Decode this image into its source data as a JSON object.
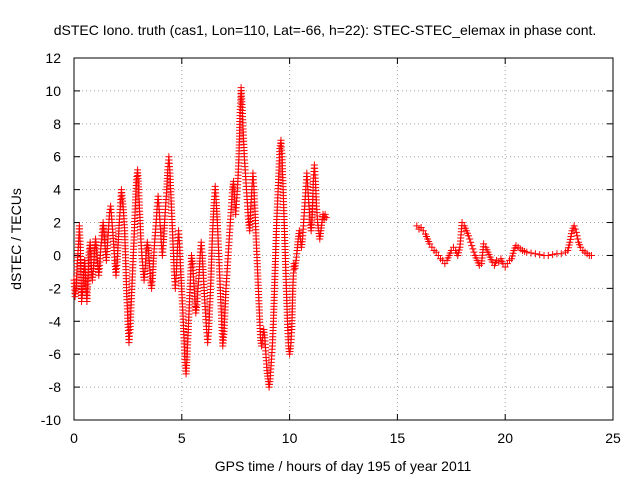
{
  "chart_data": {
    "type": "scatter",
    "title": "dSTEC Iono. truth (cas1, Lon=110, Lat=-66, h=22): STEC-STEC_elemax in phase cont.",
    "xlabel": "GPS time / hours of day 195 of year 2011",
    "ylabel": "dSTEC  / TECUs",
    "xlim": [
      0,
      25
    ],
    "ylim": [
      -10,
      12
    ],
    "xticks": [
      0,
      5,
      10,
      15,
      20,
      25
    ],
    "yticks": [
      -10,
      -8,
      -6,
      -4,
      -2,
      0,
      2,
      4,
      6,
      8,
      10,
      12
    ],
    "grid": true,
    "marker": "+",
    "color": "#ff0000",
    "series": [
      {
        "points": [
          [
            0.0,
            -1.5
          ],
          [
            0.05,
            -2.5
          ],
          [
            0.1,
            -2.0
          ],
          [
            0.15,
            -0.5
          ],
          [
            0.2,
            0.5
          ],
          [
            0.25,
            1.8
          ],
          [
            0.3,
            0.3
          ],
          [
            0.35,
            -2.8
          ],
          [
            0.4,
            -2.2
          ],
          [
            0.45,
            -1.0
          ],
          [
            0.5,
            -0.3
          ],
          [
            0.55,
            -1.8
          ],
          [
            0.6,
            -2.8
          ],
          [
            0.65,
            -1.2
          ],
          [
            0.7,
            0.2
          ],
          [
            0.75,
            0.8
          ],
          [
            0.8,
            -0.6
          ],
          [
            0.85,
            -1.5
          ],
          [
            0.9,
            -0.8
          ],
          [
            0.95,
            0.3
          ],
          [
            1.0,
            1.0
          ],
          [
            1.05,
            0.2
          ],
          [
            1.1,
            -0.5
          ],
          [
            1.15,
            -1.2
          ],
          [
            1.2,
            -0.4
          ],
          [
            1.25,
            0.6
          ],
          [
            1.3,
            1.2
          ],
          [
            1.35,
            2.0
          ],
          [
            1.4,
            1.3
          ],
          [
            1.45,
            0.4
          ],
          [
            1.5,
            -0.3
          ],
          [
            1.55,
            0.6
          ],
          [
            1.6,
            1.6
          ],
          [
            1.65,
            2.6
          ],
          [
            1.7,
            3.0
          ],
          [
            1.75,
            2.2
          ],
          [
            1.8,
            1.4
          ],
          [
            1.85,
            0.5
          ],
          [
            1.9,
            -0.5
          ],
          [
            1.95,
            -1.2
          ],
          [
            2.0,
            -0.4
          ],
          [
            2.05,
            0.8
          ],
          [
            2.1,
            2.0
          ],
          [
            2.15,
            3.0
          ],
          [
            2.2,
            4.0
          ],
          [
            2.25,
            3.3
          ],
          [
            2.3,
            2.6
          ],
          [
            2.35,
            1.5
          ],
          [
            2.4,
            -0.5
          ],
          [
            2.45,
            -2.5
          ],
          [
            2.5,
            -4.0
          ],
          [
            2.55,
            -5.3
          ],
          [
            2.6,
            -4.5
          ],
          [
            2.65,
            -3.0
          ],
          [
            2.7,
            -1.5
          ],
          [
            2.75,
            0.0
          ],
          [
            2.8,
            1.5
          ],
          [
            2.85,
            3.2
          ],
          [
            2.9,
            4.6
          ],
          [
            2.95,
            5.2
          ],
          [
            3.0,
            4.0
          ],
          [
            3.05,
            2.5
          ],
          [
            3.1,
            1.0
          ],
          [
            3.15,
            0.0
          ],
          [
            3.2,
            -0.8
          ],
          [
            3.25,
            -1.5
          ],
          [
            3.3,
            -0.8
          ],
          [
            3.35,
            0.2
          ],
          [
            3.4,
            0.8
          ],
          [
            3.45,
            0.3
          ],
          [
            3.5,
            -0.5
          ],
          [
            3.55,
            -1.5
          ],
          [
            3.6,
            -2.0
          ],
          [
            3.65,
            -1.2
          ],
          [
            3.7,
            0.0
          ],
          [
            3.75,
            1.0
          ],
          [
            3.8,
            1.8
          ],
          [
            3.85,
            2.8
          ],
          [
            3.9,
            3.6
          ],
          [
            3.95,
            2.8
          ],
          [
            4.0,
            1.8
          ],
          [
            4.05,
            0.8
          ],
          [
            4.1,
            0.0
          ],
          [
            4.15,
            0.8
          ],
          [
            4.2,
            2.0
          ],
          [
            4.25,
            3.0
          ],
          [
            4.3,
            4.0
          ],
          [
            4.35,
            5.2
          ],
          [
            4.4,
            6.0
          ],
          [
            4.45,
            5.0
          ],
          [
            4.5,
            3.5
          ],
          [
            4.55,
            2.0
          ],
          [
            4.6,
            0.5
          ],
          [
            4.65,
            -1.0
          ],
          [
            4.7,
            -2.0
          ],
          [
            4.75,
            -1.0
          ],
          [
            4.8,
            0.5
          ],
          [
            4.85,
            1.5
          ],
          [
            4.9,
            0.5
          ],
          [
            4.95,
            -1.0
          ],
          [
            5.0,
            -2.2
          ],
          [
            5.05,
            -3.5
          ],
          [
            5.1,
            -5.0
          ],
          [
            5.15,
            -6.5
          ],
          [
            5.2,
            -7.2
          ],
          [
            5.25,
            -6.0
          ],
          [
            5.3,
            -4.5
          ],
          [
            5.35,
            -3.0
          ],
          [
            5.4,
            -1.5
          ],
          [
            5.45,
            0.0
          ],
          [
            5.5,
            -0.5
          ],
          [
            5.55,
            -1.5
          ],
          [
            5.6,
            -2.5
          ],
          [
            5.65,
            -3.5
          ],
          [
            5.7,
            -3.0
          ],
          [
            5.75,
            -2.0
          ],
          [
            5.8,
            -1.2
          ],
          [
            5.85,
            0.0
          ],
          [
            5.9,
            0.8
          ],
          [
            5.95,
            0.0
          ],
          [
            6.0,
            -1.2
          ],
          [
            6.05,
            -2.5
          ],
          [
            6.1,
            -3.5
          ],
          [
            6.15,
            -4.5
          ],
          [
            6.2,
            -5.3
          ],
          [
            6.25,
            -4.5
          ],
          [
            6.3,
            -3.0
          ],
          [
            6.35,
            -1.5
          ],
          [
            6.4,
            0.5
          ],
          [
            6.45,
            2.0
          ],
          [
            6.5,
            3.2
          ],
          [
            6.55,
            4.2
          ],
          [
            6.6,
            3.2
          ],
          [
            6.65,
            2.0
          ],
          [
            6.7,
            0.5
          ],
          [
            6.75,
            -1.0
          ],
          [
            6.8,
            -2.5
          ],
          [
            6.85,
            -4.0
          ],
          [
            6.9,
            -5.5
          ],
          [
            6.95,
            -4.8
          ],
          [
            7.0,
            -3.5
          ],
          [
            7.05,
            -2.0
          ],
          [
            7.1,
            -1.0
          ],
          [
            7.15,
            0.0
          ],
          [
            7.2,
            1.0
          ],
          [
            7.25,
            2.0
          ],
          [
            7.3,
            3.0
          ],
          [
            7.35,
            4.0
          ],
          [
            7.4,
            4.5
          ],
          [
            7.45,
            3.5
          ],
          [
            7.5,
            2.5
          ],
          [
            7.55,
            3.5
          ],
          [
            7.6,
            4.5
          ],
          [
            7.65,
            6.0
          ],
          [
            7.7,
            8.5
          ],
          [
            7.75,
            10.2
          ],
          [
            7.8,
            9.0
          ],
          [
            7.85,
            7.5
          ],
          [
            7.9,
            6.0
          ],
          [
            7.95,
            5.0
          ],
          [
            8.0,
            4.0
          ],
          [
            8.05,
            3.0
          ],
          [
            8.1,
            2.0
          ],
          [
            8.15,
            1.5
          ],
          [
            8.2,
            3.0
          ],
          [
            8.25,
            4.0
          ],
          [
            8.3,
            5.0
          ],
          [
            8.35,
            4.0
          ],
          [
            8.4,
            2.5
          ],
          [
            8.45,
            1.0
          ],
          [
            8.5,
            -0.5
          ],
          [
            8.55,
            -2.0
          ],
          [
            8.6,
            -3.5
          ],
          [
            8.65,
            -5.0
          ],
          [
            8.7,
            -5.5
          ],
          [
            8.75,
            -5.0
          ],
          [
            8.8,
            -4.5
          ],
          [
            8.85,
            -5.0
          ],
          [
            8.9,
            -6.0
          ],
          [
            8.95,
            -7.0
          ],
          [
            9.0,
            -7.5
          ],
          [
            9.05,
            -8.0
          ],
          [
            9.1,
            -7.5
          ],
          [
            9.15,
            -6.5
          ],
          [
            9.2,
            -5.5
          ],
          [
            9.25,
            -4.0
          ],
          [
            9.3,
            -2.0
          ],
          [
            9.35,
            0.0
          ],
          [
            9.4,
            2.0
          ],
          [
            9.45,
            3.5
          ],
          [
            9.5,
            5.0
          ],
          [
            9.55,
            6.5
          ],
          [
            9.6,
            7.0
          ],
          [
            9.65,
            6.0
          ],
          [
            9.7,
            4.0
          ],
          [
            9.75,
            2.0
          ],
          [
            9.8,
            0.0
          ],
          [
            9.85,
            -2.0
          ],
          [
            9.9,
            -4.0
          ],
          [
            9.95,
            -5.5
          ],
          [
            10.0,
            -6.0
          ],
          [
            10.05,
            -5.5
          ],
          [
            10.1,
            -4.5
          ],
          [
            10.15,
            -2.0
          ],
          [
            10.2,
            -0.5
          ],
          [
            10.25,
            -0.8
          ],
          [
            10.3,
            -0.3
          ],
          [
            10.35,
            0.3
          ],
          [
            10.4,
            1.0
          ],
          [
            10.45,
            1.5
          ],
          [
            10.5,
            1.0
          ],
          [
            10.55,
            0.5
          ],
          [
            10.6,
            1.0
          ],
          [
            10.65,
            2.0
          ],
          [
            10.7,
            3.0
          ],
          [
            10.75,
            4.0
          ],
          [
            10.8,
            5.0
          ],
          [
            10.85,
            4.0
          ],
          [
            10.9,
            3.0
          ],
          [
            10.95,
            2.0
          ],
          [
            11.0,
            1.5
          ],
          [
            11.05,
            2.5
          ],
          [
            11.1,
            4.5
          ],
          [
            11.15,
            5.5
          ],
          [
            11.2,
            4.5
          ],
          [
            11.25,
            3.0
          ],
          [
            11.3,
            2.0
          ],
          [
            11.35,
            1.5
          ],
          [
            11.4,
            1.0
          ],
          [
            11.45,
            1.5
          ],
          [
            11.5,
            2.0
          ],
          [
            11.55,
            2.5
          ],
          [
            11.6,
            2.2
          ],
          [
            11.65,
            2.5
          ],
          [
            11.7,
            2.3
          ],
          [
            15.9,
            1.8
          ],
          [
            16.0,
            1.6
          ],
          [
            16.1,
            1.7
          ],
          [
            16.2,
            1.5
          ],
          [
            16.3,
            1.3
          ],
          [
            16.4,
            1.0
          ],
          [
            16.5,
            0.7
          ],
          [
            16.6,
            0.5
          ],
          [
            16.7,
            0.3
          ],
          [
            16.8,
            0.2
          ],
          [
            16.9,
            0.0
          ],
          [
            17.0,
            -0.2
          ],
          [
            17.1,
            -0.3
          ],
          [
            17.2,
            -0.5
          ],
          [
            17.3,
            -0.3
          ],
          [
            17.4,
            0.0
          ],
          [
            17.5,
            0.3
          ],
          [
            17.6,
            0.5
          ],
          [
            17.7,
            0.3
          ],
          [
            17.8,
            0.0
          ],
          [
            17.9,
            0.5
          ],
          [
            18.0,
            2.0
          ],
          [
            18.1,
            1.8
          ],
          [
            18.2,
            1.5
          ],
          [
            18.3,
            1.2
          ],
          [
            18.4,
            0.8
          ],
          [
            18.5,
            0.4
          ],
          [
            18.6,
            0.0
          ],
          [
            18.7,
            -0.3
          ],
          [
            18.8,
            -0.6
          ],
          [
            18.9,
            -0.5
          ],
          [
            19.0,
            0.7
          ],
          [
            19.1,
            0.5
          ],
          [
            19.2,
            0.2
          ],
          [
            19.3,
            -0.1
          ],
          [
            19.4,
            -0.4
          ],
          [
            19.5,
            -0.6
          ],
          [
            19.6,
            -0.3
          ],
          [
            19.7,
            -0.4
          ],
          [
            19.8,
            -0.2
          ],
          [
            19.9,
            -0.5
          ],
          [
            20.0,
            -0.7
          ],
          [
            20.1,
            -0.5
          ],
          [
            20.2,
            -0.3
          ],
          [
            20.3,
            -0.2
          ],
          [
            20.4,
            0.3
          ],
          [
            20.5,
            0.6
          ],
          [
            20.6,
            0.5
          ],
          [
            20.7,
            0.4
          ],
          [
            20.8,
            0.3
          ],
          [
            20.9,
            0.25
          ],
          [
            21.0,
            0.2
          ],
          [
            21.2,
            0.15
          ],
          [
            21.4,
            0.1
          ],
          [
            21.6,
            0.05
          ],
          [
            21.8,
            0.0
          ],
          [
            22.0,
            0.0
          ],
          [
            22.2,
            0.05
          ],
          [
            22.4,
            0.1
          ],
          [
            22.6,
            0.1
          ],
          [
            22.8,
            0.2
          ],
          [
            22.9,
            0.3
          ],
          [
            23.0,
            0.8
          ],
          [
            23.1,
            1.5
          ],
          [
            23.2,
            1.8
          ],
          [
            23.3,
            1.4
          ],
          [
            23.4,
            0.8
          ],
          [
            23.5,
            0.5
          ],
          [
            23.6,
            0.3
          ],
          [
            23.7,
            0.2
          ],
          [
            23.8,
            0.1
          ],
          [
            23.9,
            0.0
          ],
          [
            24.0,
            0.0
          ]
        ]
      }
    ]
  }
}
